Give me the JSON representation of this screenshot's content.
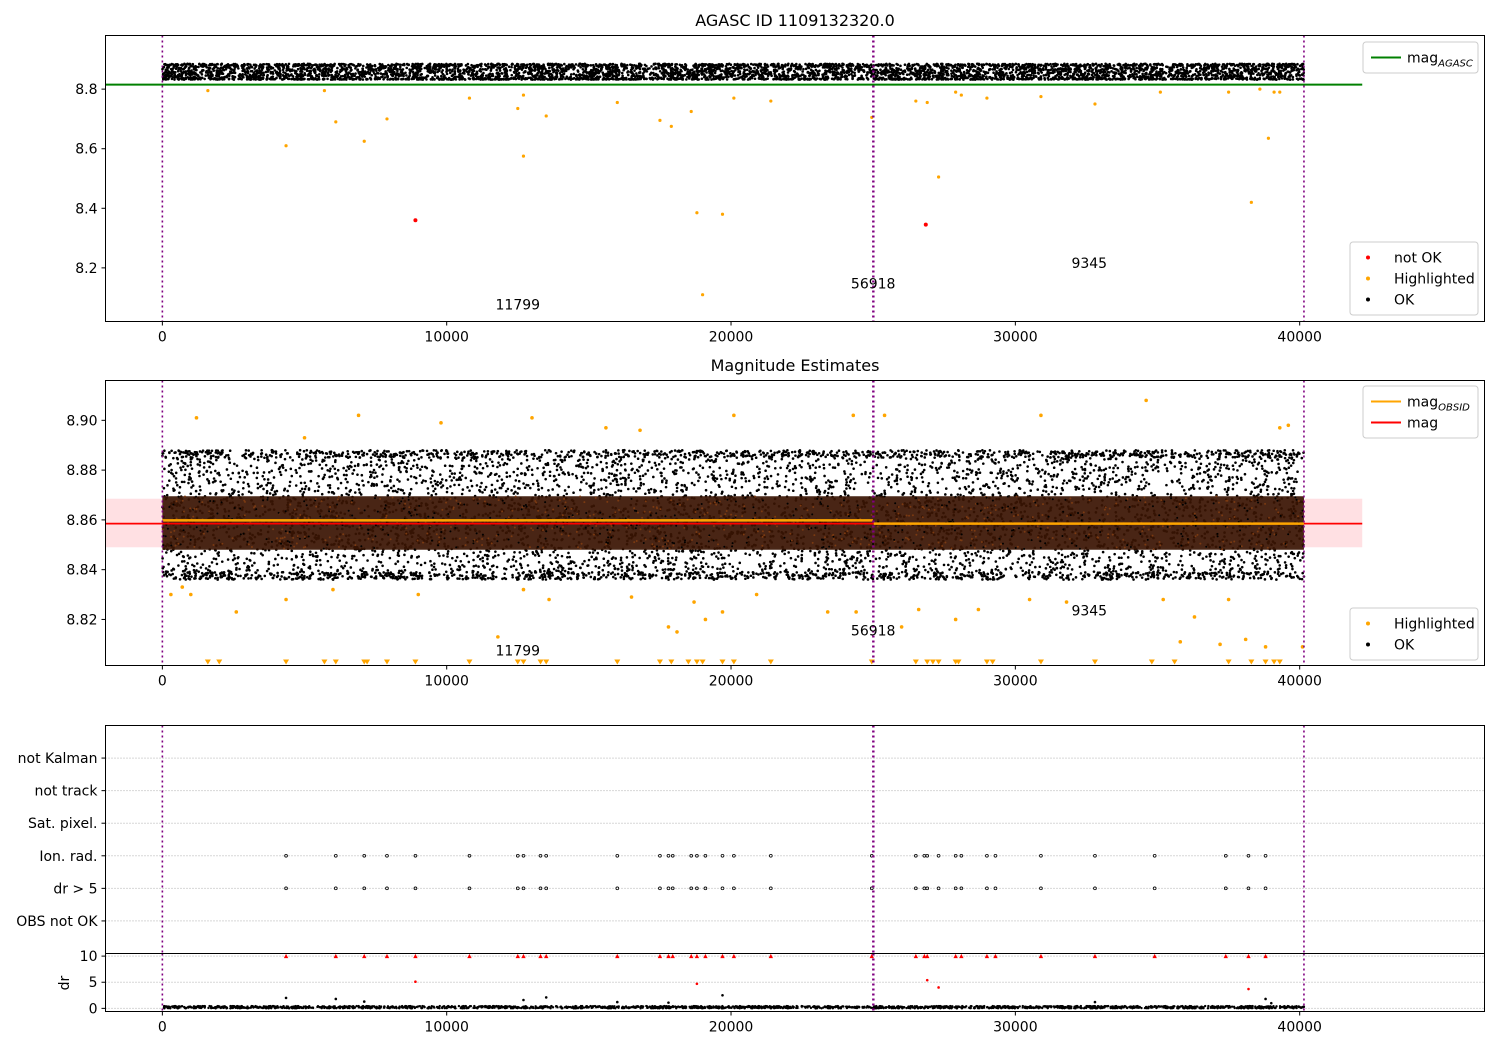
{
  "chart_data": [
    {
      "id": "mag-agasc",
      "type": "scatter",
      "title": "AGASC ID 1109132320.0",
      "xlim": [
        -2000,
        46500
      ],
      "ylim": [
        8.02,
        8.98
      ],
      "xticks": [
        0,
        10000,
        20000,
        30000,
        40000
      ],
      "xtick_labels": [
        "0",
        "10000",
        "20000",
        "30000",
        "40000"
      ],
      "yticks": [
        8.2,
        8.4,
        8.6,
        8.8
      ],
      "ytick_labels": [
        "8.2",
        "8.4",
        "8.6",
        "8.8"
      ],
      "vlines": [
        0,
        24990,
        25020,
        40150
      ],
      "hlines": [
        {
          "y": 8.815,
          "x": [
            -2000,
            42200
          ],
          "color": "#008000",
          "label": "mag",
          "label_sub": "AGASC"
        }
      ],
      "ok_band": {
        "x": [
          0,
          40150
        ],
        "y": [
          8.835,
          8.88
        ],
        "color": "#000000"
      },
      "series": [
        {
          "name": "not OK",
          "color": "#ff0000",
          "points": [
            [
              8900,
              8.36
            ],
            [
              26850,
              8.345
            ]
          ]
        },
        {
          "name": "Highlighted",
          "color": "#ffa500",
          "points": [
            [
              1600,
              8.795
            ],
            [
              4350,
              8.61
            ],
            [
              5700,
              8.795
            ],
            [
              6100,
              8.69
            ],
            [
              7100,
              8.625
            ],
            [
              7900,
              8.7
            ],
            [
              10800,
              8.77
            ],
            [
              12500,
              8.735
            ],
            [
              12700,
              8.78
            ],
            [
              12700,
              8.575
            ],
            [
              13500,
              8.71
            ],
            [
              16000,
              8.755
            ],
            [
              17500,
              8.695
            ],
            [
              17900,
              8.675
            ],
            [
              18600,
              8.725
            ],
            [
              18800,
              8.385
            ],
            [
              19000,
              8.11
            ],
            [
              19700,
              8.38
            ],
            [
              20100,
              8.77
            ],
            [
              21400,
              8.76
            ],
            [
              24950,
              8.705
            ],
            [
              26500,
              8.76
            ],
            [
              26900,
              8.755
            ],
            [
              27300,
              8.505
            ],
            [
              27900,
              8.79
            ],
            [
              28100,
              8.78
            ],
            [
              29000,
              8.77
            ],
            [
              30900,
              8.775
            ],
            [
              32800,
              8.75
            ],
            [
              35100,
              8.79
            ],
            [
              37500,
              8.79
            ],
            [
              38300,
              8.42
            ],
            [
              38600,
              8.8
            ],
            [
              38900,
              8.635
            ],
            [
              39100,
              8.79
            ],
            [
              39300,
              8.79
            ]
          ]
        },
        {
          "name": "OK",
          "color": "#000000",
          "points": []
        }
      ],
      "legends": [
        {
          "position": "upper right",
          "items": [
            {
              "kind": "line",
              "color": "#008000",
              "label": "mag",
              "sub": "AGASC"
            }
          ]
        },
        {
          "position": "lower right",
          "items": [
            {
              "kind": "dot",
              "color": "#ff0000",
              "label": "not OK"
            },
            {
              "kind": "dot",
              "color": "#ffa500",
              "label": "Highlighted"
            },
            {
              "kind": "dot",
              "color": "#000000",
              "label": "OK"
            }
          ]
        }
      ],
      "annotations": [
        {
          "text": "11799",
          "x": 12500,
          "y": 8.06
        },
        {
          "text": "56918",
          "x": 25000,
          "y": 8.13
        },
        {
          "text": "9345",
          "x": 32600,
          "y": 8.2
        }
      ]
    },
    {
      "id": "mag-estimates",
      "type": "scatter",
      "title": "Magnitude Estimates",
      "xlim": [
        -2000,
        46500
      ],
      "ylim": [
        8.8015,
        8.916
      ],
      "xticks": [
        0,
        10000,
        20000,
        30000,
        40000
      ],
      "xtick_labels": [
        "0",
        "10000",
        "20000",
        "30000",
        "40000"
      ],
      "yticks": [
        8.82,
        8.84,
        8.86,
        8.88,
        8.9
      ],
      "ytick_labels": [
        "8.82",
        "8.84",
        "8.86",
        "8.88",
        "8.90"
      ],
      "vlines": [
        0,
        24990,
        25020,
        40150
      ],
      "band": {
        "x": [
          -2000,
          42200
        ],
        "y": [
          8.849,
          8.8685
        ],
        "color": "#ffe0e3"
      },
      "core_band": {
        "x": [
          0,
          40150
        ],
        "y": [
          8.848,
          8.8695
        ],
        "color": "#3a1503"
      },
      "ok_band": {
        "x": [
          0,
          40150
        ],
        "y": [
          8.839,
          8.885
        ],
        "color": "#000000"
      },
      "hlines": [
        {
          "y": 8.8585,
          "x": [
            -2000,
            42200
          ],
          "color": "#ff0000",
          "label": "mag"
        },
        {
          "y": 8.8598,
          "x": [
            0,
            24990
          ],
          "color": "#ffa500",
          "label": "mag",
          "label_sub": "OBSID"
        },
        {
          "y": 8.8585,
          "x": [
            25020,
            40150
          ],
          "color": "#ffa500",
          "label": "mag",
          "label_sub": "OBSID"
        }
      ],
      "series": [
        {
          "name": "Highlighted",
          "color": "#ffa500",
          "points": [
            [
              300,
              8.83
            ],
            [
              700,
              8.833
            ],
            [
              1000,
              8.83
            ],
            [
              1200,
              8.901
            ],
            [
              2600,
              8.823
            ],
            [
              4350,
              8.828
            ],
            [
              5000,
              8.893
            ],
            [
              6000,
              8.832
            ],
            [
              6900,
              8.902
            ],
            [
              9000,
              8.83
            ],
            [
              9800,
              8.899
            ],
            [
              11800,
              8.813
            ],
            [
              12700,
              8.832
            ],
            [
              13000,
              8.901
            ],
            [
              13600,
              8.828
            ],
            [
              15600,
              8.897
            ],
            [
              16500,
              8.829
            ],
            [
              16800,
              8.896
            ],
            [
              17800,
              8.817
            ],
            [
              18100,
              8.815
            ],
            [
              18700,
              8.827
            ],
            [
              19100,
              8.82
            ],
            [
              19700,
              8.823
            ],
            [
              20100,
              8.902
            ],
            [
              20900,
              8.83
            ],
            [
              23400,
              8.823
            ],
            [
              24300,
              8.902
            ],
            [
              24400,
              8.823
            ],
            [
              25400,
              8.902
            ],
            [
              26000,
              8.817
            ],
            [
              26600,
              8.824
            ],
            [
              27900,
              8.82
            ],
            [
              28700,
              8.824
            ],
            [
              30500,
              8.828
            ],
            [
              30900,
              8.902
            ],
            [
              31800,
              8.827
            ],
            [
              34600,
              8.908
            ],
            [
              35200,
              8.828
            ],
            [
              35800,
              8.811
            ],
            [
              36300,
              8.821
            ],
            [
              37200,
              8.81
            ],
            [
              37500,
              8.828
            ],
            [
              38100,
              8.812
            ],
            [
              38800,
              8.809
            ],
            [
              39300,
              8.897
            ],
            [
              39600,
              8.898
            ],
            [
              40100,
              8.809
            ]
          ]
        },
        {
          "name": "OK",
          "color": "#000000",
          "points": []
        }
      ],
      "markers_low": [
        1600,
        2000,
        4350,
        5700,
        6100,
        7100,
        7200,
        7900,
        8900,
        10800,
        12500,
        12700,
        13300,
        13500,
        16000,
        17500,
        17900,
        18500,
        18800,
        19000,
        19700,
        20100,
        21400,
        24950,
        26500,
        26900,
        27100,
        27300,
        27900,
        28000,
        29000,
        29200,
        30900,
        32800,
        34800,
        35600,
        37500,
        38300,
        38800,
        39100,
        39300
      ],
      "legends": [
        {
          "position": "upper right",
          "items": [
            {
              "kind": "line",
              "color": "#ffa500",
              "label": "mag",
              "sub": "OBSID"
            },
            {
              "kind": "line",
              "color": "#ff0000",
              "label": "mag"
            }
          ]
        },
        {
          "position": "lower right",
          "items": [
            {
              "kind": "dot",
              "color": "#ffa500",
              "label": "Highlighted"
            },
            {
              "kind": "dot",
              "color": "#000000",
              "label": "OK"
            }
          ]
        }
      ],
      "annotations": [
        {
          "text": "11799",
          "x": 12500,
          "y": 8.8055
        },
        {
          "text": "56918",
          "x": 25000,
          "y": 8.8135
        },
        {
          "text": "9345",
          "x": 32600,
          "y": 8.8215
        }
      ]
    },
    {
      "id": "flags",
      "type": "scatter",
      "xlim": [
        -2000,
        46500
      ],
      "ylim": [
        0,
        7
      ],
      "categories": [
        "not Kalman",
        "not track",
        "Sat. pixel.",
        "Ion. rad.",
        "dr > 5",
        "OBS not OK"
      ],
      "category_levels": [
        6,
        5,
        4,
        3,
        2,
        1
      ],
      "vlines": [
        0,
        24990,
        25020,
        40150
      ],
      "series": [
        {
          "name": "Ion. rad.",
          "color": "#000000",
          "x": [
            4350,
            6100,
            7100,
            7900,
            8900,
            10800,
            12500,
            12700,
            13300,
            13500,
            16000,
            17500,
            17800,
            17950,
            18600,
            18800,
            19100,
            19700,
            20100,
            21400,
            24950,
            26500,
            26800,
            26900,
            27300,
            27900,
            28100,
            29000,
            29300,
            30900,
            32800,
            34900,
            37400,
            38200,
            38800
          ]
        },
        {
          "name": "dr > 5",
          "color": "#000000",
          "x": [
            4350,
            6100,
            7100,
            7900,
            8900,
            10800,
            12500,
            12700,
            13300,
            13500,
            16000,
            17500,
            17800,
            17950,
            18600,
            18800,
            19100,
            19700,
            20100,
            21400,
            24950,
            26500,
            26800,
            26900,
            27300,
            27900,
            28100,
            29000,
            29300,
            30900,
            32800,
            34900,
            37400,
            38200,
            38800
          ]
        }
      ]
    },
    {
      "id": "dr",
      "type": "scatter",
      "ylabel": "dr",
      "xlim": [
        -2000,
        46500
      ],
      "ylim": [
        -0.6,
        10.5
      ],
      "xticks": [
        0,
        10000,
        20000,
        30000,
        40000
      ],
      "xtick_labels": [
        "0",
        "10000",
        "20000",
        "30000",
        "40000"
      ],
      "yticks": [
        0,
        5,
        10
      ],
      "ytick_labels": [
        "0",
        "5",
        "10"
      ],
      "vlines": [
        0,
        24990,
        25020,
        40150
      ],
      "series": [
        {
          "name": "capped",
          "color": "#ff0000",
          "marker": "triangle",
          "points": [
            [
              4350,
              10
            ],
            [
              6100,
              10
            ],
            [
              7100,
              10
            ],
            [
              7900,
              10
            ],
            [
              8900,
              10
            ],
            [
              10800,
              10
            ],
            [
              12500,
              10
            ],
            [
              12700,
              10
            ],
            [
              13300,
              10
            ],
            [
              13500,
              10
            ],
            [
              16000,
              10
            ],
            [
              17500,
              10
            ],
            [
              17800,
              10
            ],
            [
              17950,
              10
            ],
            [
              18600,
              10
            ],
            [
              18800,
              10
            ],
            [
              19100,
              10
            ],
            [
              19700,
              10
            ],
            [
              20100,
              10
            ],
            [
              21400,
              10
            ],
            [
              24950,
              10
            ],
            [
              26500,
              10
            ],
            [
              26800,
              10
            ],
            [
              26900,
              10
            ],
            [
              27900,
              10
            ],
            [
              28100,
              10
            ],
            [
              29000,
              10
            ],
            [
              29300,
              10
            ],
            [
              30900,
              10
            ],
            [
              32800,
              10
            ],
            [
              34900,
              10
            ],
            [
              37400,
              10
            ],
            [
              38200,
              10
            ],
            [
              38800,
              10
            ]
          ]
        },
        {
          "name": "red",
          "color": "#ff0000",
          "points": [
            [
              8900,
              5.1
            ],
            [
              18800,
              4.7
            ],
            [
              26900,
              5.4
            ],
            [
              27300,
              4.0
            ],
            [
              38200,
              3.7
            ]
          ]
        },
        {
          "name": "black",
          "color": "#000000",
          "points": [
            [
              4350,
              2.0
            ],
            [
              6100,
              1.8
            ],
            [
              7100,
              1.3
            ],
            [
              12700,
              1.6
            ],
            [
              13500,
              2.1
            ],
            [
              16000,
              1.2
            ],
            [
              17800,
              1.1
            ],
            [
              19700,
              2.5
            ],
            [
              32800,
              1.2
            ],
            [
              38800,
              1.8
            ],
            [
              39000,
              1.0
            ]
          ]
        },
        {
          "name": "OK",
          "color": "#000000",
          "points": []
        }
      ]
    }
  ]
}
